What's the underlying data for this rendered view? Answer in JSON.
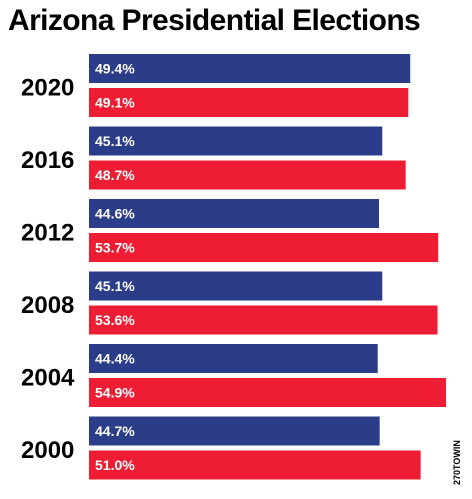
{
  "chart_data": {
    "type": "bar",
    "title": "Arizona Presidential Elections",
    "categories": [
      "2020",
      "2016",
      "2012",
      "2008",
      "2004",
      "2000"
    ],
    "series": [
      {
        "color": "#2b3c88",
        "values": [
          49.4,
          45.1,
          44.6,
          45.1,
          44.4,
          44.7
        ]
      },
      {
        "color": "#ee1d33",
        "values": [
          49.1,
          48.7,
          53.7,
          53.6,
          54.9,
          51.0
        ]
      }
    ],
    "value_suffix": "%",
    "xlim": [
      0,
      54.9
    ],
    "grid": false,
    "legend": "none"
  },
  "watermark": "270TOWIN"
}
